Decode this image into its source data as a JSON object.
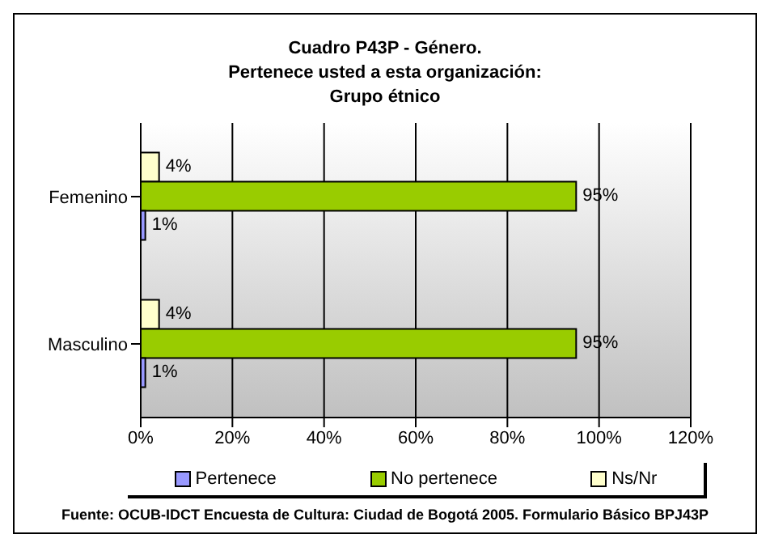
{
  "chart_data": {
    "type": "bar",
    "orientation": "horizontal",
    "title": "Cuadro P43P - Género.\nPertenece usted a esta organización:\nGrupo étnico",
    "categories": [
      "Femenino",
      "Masculino"
    ],
    "series": [
      {
        "name": "Pertenece",
        "color": "#9999ff",
        "values": [
          1,
          1
        ],
        "value_labels": [
          "1%",
          "1%"
        ]
      },
      {
        "name": "No pertenece",
        "color": "#99cc00",
        "values": [
          95,
          95
        ],
        "value_labels": [
          "95%",
          "95%"
        ]
      },
      {
        "name": "Ns/Nr",
        "color": "#ffffcc",
        "values": [
          4,
          4
        ],
        "value_labels": [
          "4%",
          "4%"
        ]
      }
    ],
    "xlim": [
      0,
      120
    ],
    "xticks": [
      {
        "value": 0,
        "label": "0%"
      },
      {
        "value": 20,
        "label": "20%"
      },
      {
        "value": 40,
        "label": "40%"
      },
      {
        "value": 60,
        "label": "60%"
      },
      {
        "value": 80,
        "label": "80%"
      },
      {
        "value": 100,
        "label": "100%"
      },
      {
        "value": 120,
        "label": "120%"
      }
    ],
    "grid": "x",
    "legend": "bottom",
    "annotations": [
      "Fuente: OCUB-IDCT Encuesta de Cultura: Ciudad de Bogotá 2005. Formulario Básico BPJ43P"
    ]
  }
}
